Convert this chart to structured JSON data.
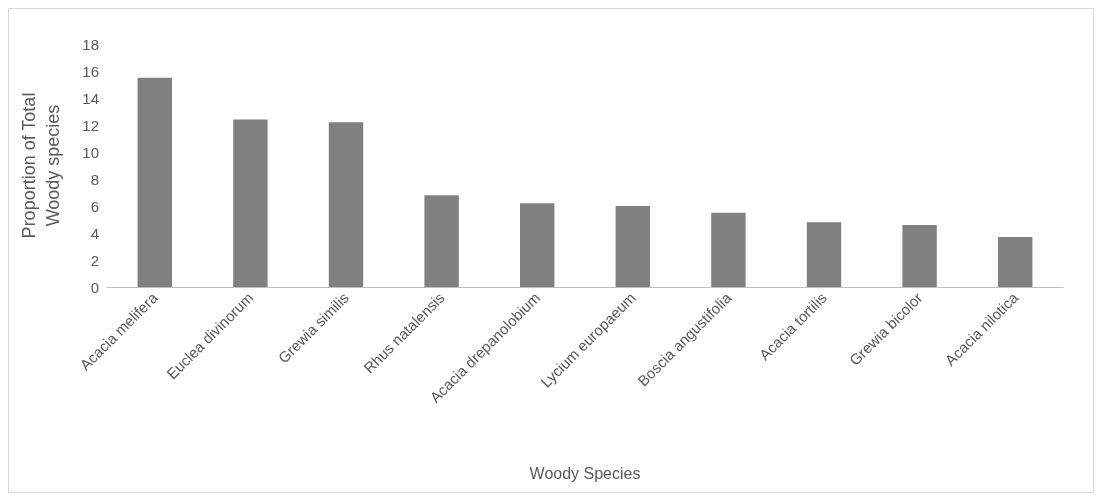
{
  "chart_data": {
    "type": "bar",
    "xlabel": "Woody Species",
    "ylabel": "Proportion of Total\nWoody species",
    "categories": [
      "Acacia melifera",
      "Euclea divinorum",
      "Grewia similis",
      "Rhus natalensis",
      "Acacia drepanolobium",
      "Lycium europaeum",
      "Boscia angustifolia",
      "Acacia tortilis",
      "Grewia bicolor",
      "Acacia nilotica"
    ],
    "values": [
      15.5,
      12.4,
      12.2,
      6.8,
      6.2,
      6.0,
      5.5,
      4.8,
      4.6,
      3.7
    ],
    "color": "#808080",
    "ylim": [
      0,
      18
    ],
    "yticks": [
      0,
      2,
      4,
      6,
      8,
      10,
      12,
      14,
      16,
      18
    ],
    "grid": false
  }
}
